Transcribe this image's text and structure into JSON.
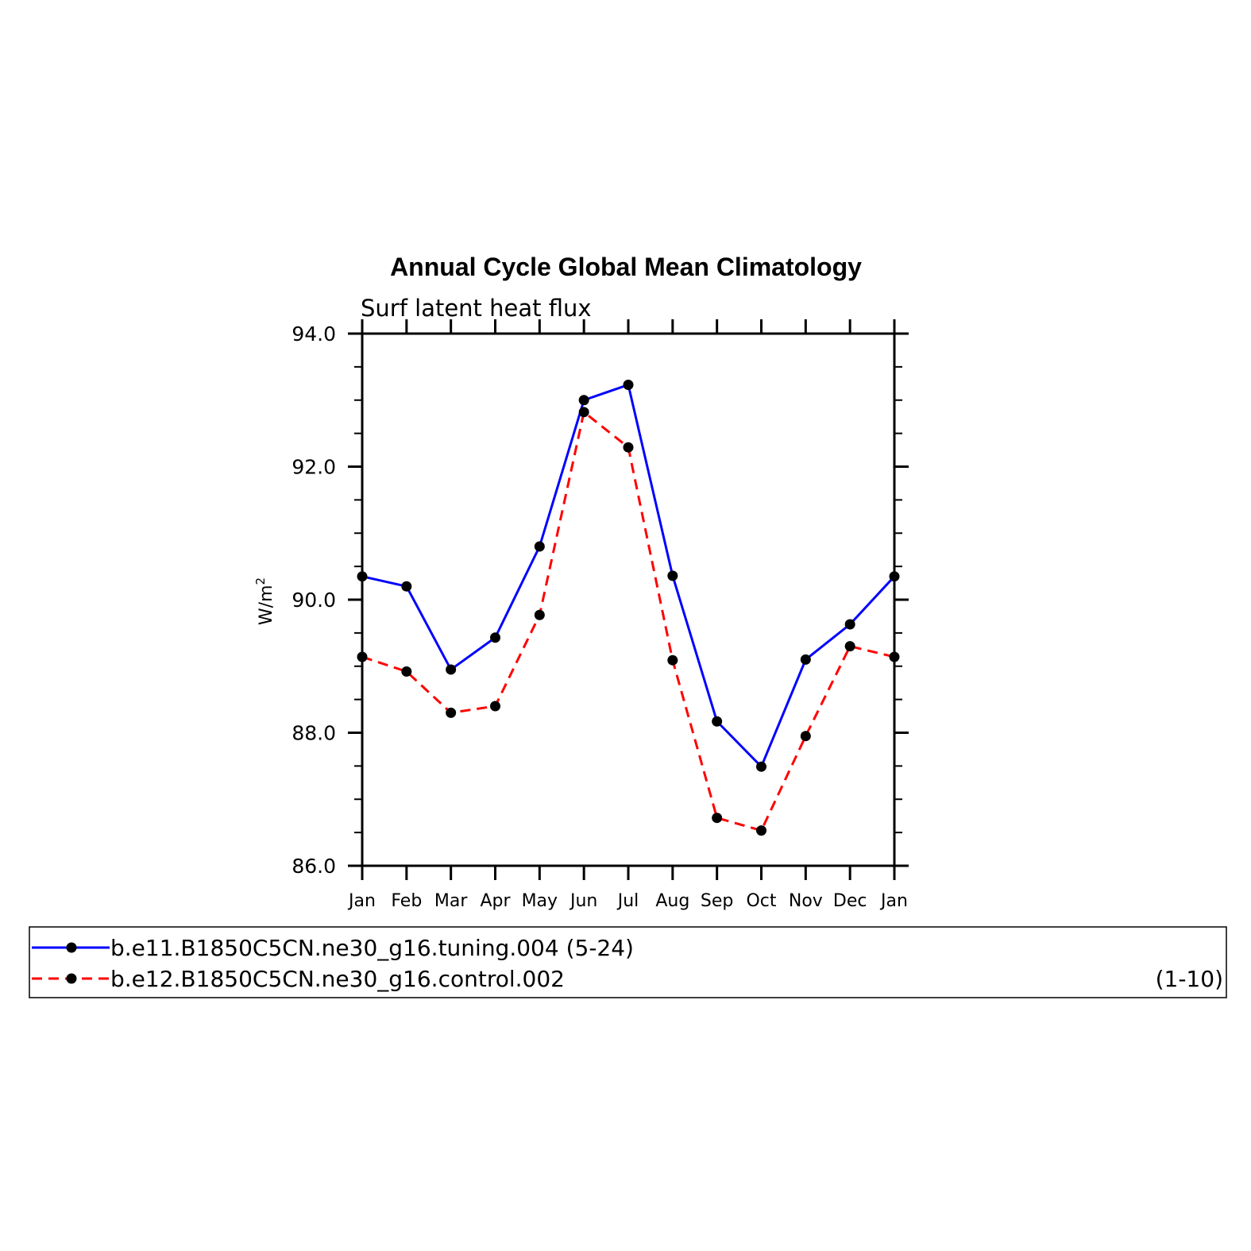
{
  "chart_data": {
    "type": "line",
    "title": "Annual Cycle Global Mean Climatology",
    "subtitle": "Surf latent heat flux",
    "ylabel": "W/m",
    "ylabel_sup": "2",
    "categories": [
      "Jan",
      "Feb",
      "Mar",
      "Apr",
      "May",
      "Jun",
      "Jul",
      "Aug",
      "Sep",
      "Oct",
      "Nov",
      "Dec",
      "Jan"
    ],
    "ylim": [
      86.0,
      94.0
    ],
    "yticks": [
      "86.0",
      "88.0",
      "90.0",
      "92.0",
      "94.0"
    ],
    "series": [
      {
        "name": "b.e11.B1850C5CN.ne30_g16.tuning.004 (5-24)",
        "period": "",
        "color": "#0000ff",
        "dash": false,
        "values": [
          90.35,
          90.2,
          88.95,
          89.43,
          90.8,
          93.0,
          93.23,
          90.36,
          88.17,
          87.49,
          89.1,
          89.63,
          90.35
        ]
      },
      {
        "name": "b.e12.B1850C5CN.ne30_g16.control.002",
        "period": "(1-10)",
        "color": "#ff0000",
        "dash": true,
        "values": [
          89.14,
          88.92,
          88.3,
          88.4,
          89.77,
          92.82,
          92.29,
          89.09,
          86.72,
          86.53,
          87.95,
          89.3,
          89.14
        ]
      }
    ],
    "marker_color": "#000000",
    "grid": false,
    "legend_position": "bottom"
  }
}
